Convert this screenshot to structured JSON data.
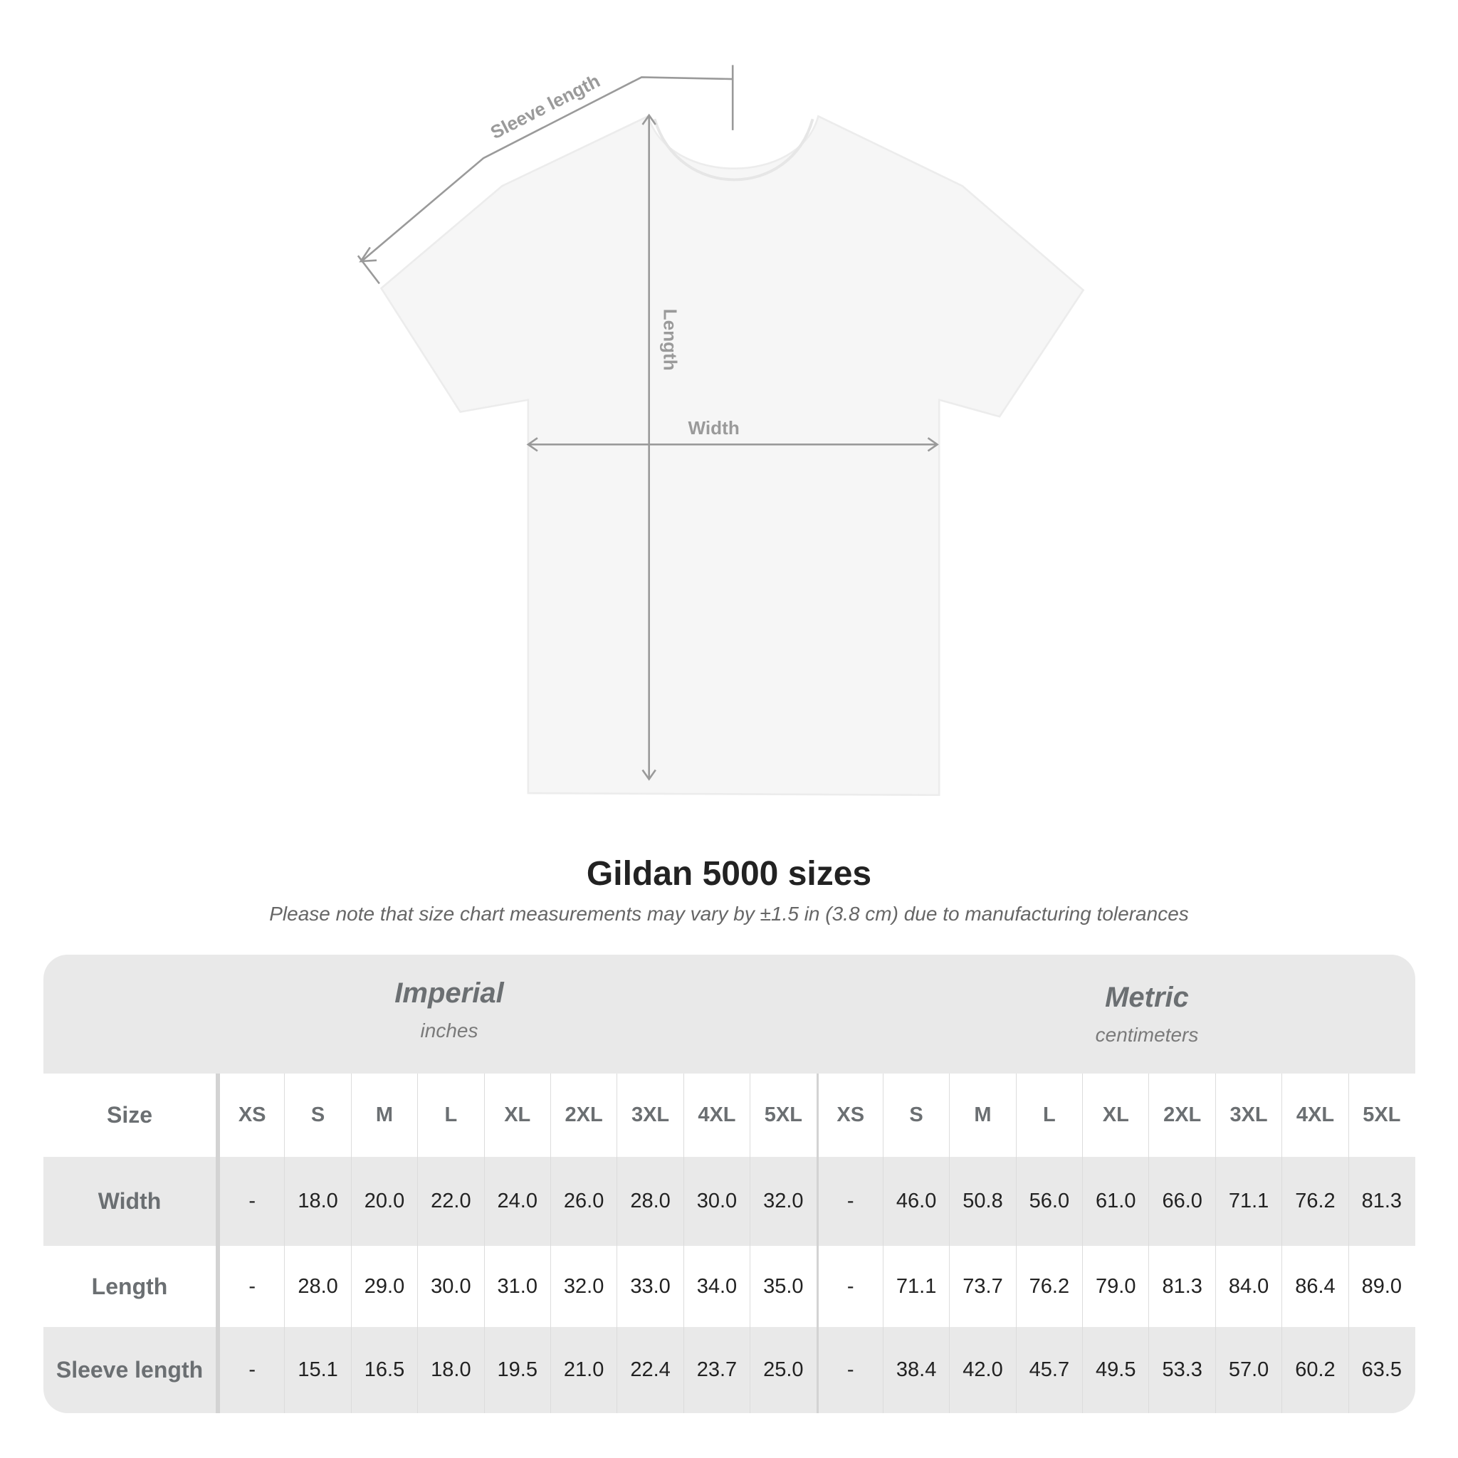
{
  "diagram": {
    "labels": {
      "sleeve": "Sleeve length",
      "length": "Length",
      "width": "Width"
    },
    "colors": {
      "shirt": "#f7f7f7",
      "guide": "#9a9a9a"
    }
  },
  "title": "Gildan 5000 sizes",
  "subtitle": "Please note that size chart measurements may vary by ±1.5 in (3.8 cm) due to manufacturing tolerances",
  "table": {
    "imperial": {
      "title": "Imperial",
      "unit": "inches"
    },
    "metric": {
      "title": "Metric",
      "unit": "centimeters"
    },
    "size_label": "Size",
    "sizes": [
      "XS",
      "S",
      "M",
      "L",
      "XL",
      "2XL",
      "3XL",
      "4XL",
      "5XL",
      "XS",
      "S",
      "M",
      "L",
      "XL",
      "2XL",
      "3XL",
      "4XL",
      "5XL"
    ],
    "rows": [
      {
        "label": "Width",
        "values": [
          "-",
          "18.0",
          "20.0",
          "22.0",
          "24.0",
          "26.0",
          "28.0",
          "30.0",
          "32.0",
          "-",
          "46.0",
          "50.8",
          "56.0",
          "61.0",
          "66.0",
          "71.1",
          "76.2",
          "81.3"
        ]
      },
      {
        "label": "Length",
        "values": [
          "-",
          "28.0",
          "29.0",
          "30.0",
          "31.0",
          "32.0",
          "33.0",
          "34.0",
          "35.0",
          "-",
          "71.1",
          "73.7",
          "76.2",
          "79.0",
          "81.3",
          "84.0",
          "86.4",
          "89.0"
        ]
      },
      {
        "label": "Sleeve length",
        "values": [
          "-",
          "15.1",
          "16.5",
          "18.0",
          "19.5",
          "21.0",
          "22.4",
          "23.7",
          "25.0",
          "-",
          "38.4",
          "42.0",
          "45.7",
          "49.5",
          "53.3",
          "57.0",
          "60.2",
          "63.5"
        ]
      }
    ]
  }
}
